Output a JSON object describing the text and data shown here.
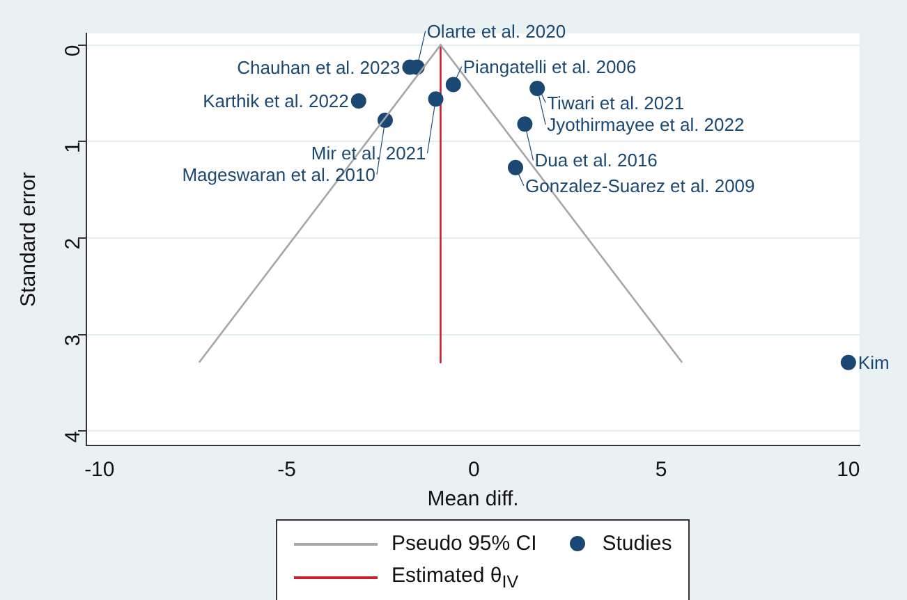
{
  "chart_data": {
    "type": "scatter",
    "xlabel": "Mean diff.",
    "ylabel": "Standard error",
    "xlim": [
      -10.35,
      10.3
    ],
    "xticks": [
      -10,
      -5,
      0,
      5,
      10
    ],
    "ylim": [
      4.15,
      -0.12
    ],
    "yticks": [
      0,
      1,
      2,
      3,
      4
    ],
    "grid": "y",
    "legend": "bottom",
    "series": [
      {
        "name": "Pseudo 95% CI",
        "type": "line",
        "marker": "none",
        "color": "#a6a6a6",
        "x": [
          -7.34,
          -0.89,
          5.56
        ],
        "values": [
          3.29,
          0,
          3.29
        ]
      },
      {
        "name": "Studies",
        "type": "scatter",
        "marker": "circle",
        "color": "#1a4872",
        "x": [
          -1.71,
          -1.52,
          -0.55,
          null,
          1.69,
          -3.08,
          -1.02,
          -2.37,
          1.36,
          1.11,
          10.0
        ],
        "values": [
          0.23,
          0.23,
          0.41,
          null,
          0.45,
          0.58,
          0.56,
          0.78,
          0.82,
          1.27,
          3.29
        ]
      },
      {
        "name": "Estimated θ$_{IV}$",
        "type": "line",
        "marker": "none",
        "color": "#c8202e",
        "x": [
          -0.89,
          -0.89
        ],
        "values": [
          0,
          3.29
        ]
      }
    ],
    "annotations": [
      {
        "text": "Chauhan et al. 2023",
        "x": -1.71,
        "y": 0.23
      },
      {
        "text": "Olarte et al. 2020",
        "x": -1.52,
        "y": 0.23
      },
      {
        "text": "Piangatelli et al. 2006",
        "x": -0.55,
        "y": 0.41
      },
      {
        "text": "Tiwari et al. 2021",
        "x": 1.69,
        "y": 0.41
      },
      {
        "text": "Jyothirmayee et al. 2022",
        "x": 1.69,
        "y": 0.45
      },
      {
        "text": "Karthik et al. 2022",
        "x": -3.08,
        "y": 0.58
      },
      {
        "text": "Mir et al. 2021",
        "x": -1.02,
        "y": 0.56
      },
      {
        "text": "Mageswaran et al. 2010",
        "x": -2.37,
        "y": 0.78
      },
      {
        "text": "Dua et al. 2016",
        "x": 1.36,
        "y": 0.82
      },
      {
        "text": "Gonzalez-Suarez et al. 2009",
        "x": 1.11,
        "y": 1.27
      },
      {
        "text": "Kim",
        "x": 10.0,
        "y": 3.29
      }
    ]
  }
}
